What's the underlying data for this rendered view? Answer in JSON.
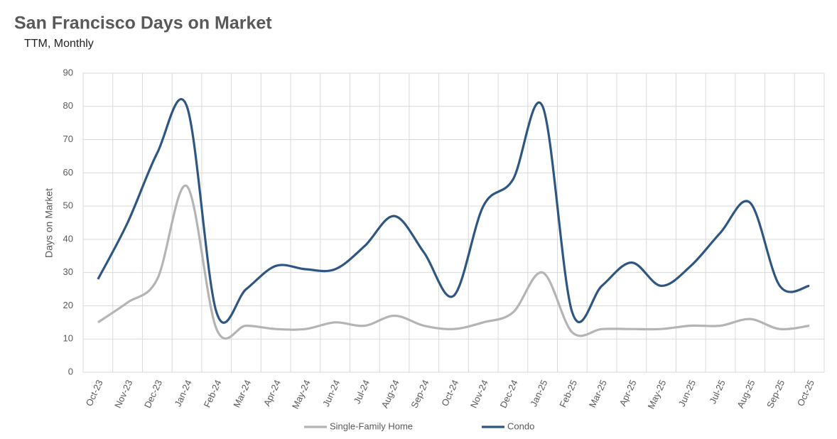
{
  "chart_data": {
    "type": "line",
    "title": "San Francisco Days on Market",
    "subtitle": "TTM, Monthly",
    "y_label": "Days on Market",
    "categories": [
      "Oct-23",
      "Nov-23",
      "Dec-23",
      "Jan-24",
      "Feb-24",
      "Mar-24",
      "Apr-24",
      "May-24",
      "Jun-24",
      "Jul-24",
      "Aug-24",
      "Sep-24",
      "Oct-24",
      "Nov-24",
      "Dec-24",
      "Jan-25",
      "Feb-25",
      "Mar-25",
      "Apr-25",
      "May-25",
      "Jun-25",
      "Jul-25",
      "Aug-25",
      "Sep-25",
      "Oct-25"
    ],
    "series": [
      {
        "name": "Single-Family Home",
        "color": "#b4b4b4",
        "values": [
          15,
          21,
          28,
          56,
          13,
          14,
          13,
          13,
          15,
          14,
          17,
          14,
          13,
          15,
          18,
          30,
          12,
          13,
          13,
          13,
          14,
          14,
          16,
          13,
          14
        ]
      },
      {
        "name": "Condo",
        "color": "#2e5682",
        "values": [
          28,
          45,
          66,
          80,
          18,
          25,
          32,
          31,
          31,
          38,
          47,
          36,
          23,
          50,
          58,
          80,
          18,
          26,
          33,
          26,
          32,
          42,
          51,
          26,
          26
        ]
      }
    ],
    "ylim": [
      0,
      90
    ],
    "yticks": [
      0,
      10,
      20,
      30,
      40,
      50,
      60,
      70,
      80,
      90
    ],
    "grid": true,
    "smooth": true,
    "legend": "bottom"
  }
}
